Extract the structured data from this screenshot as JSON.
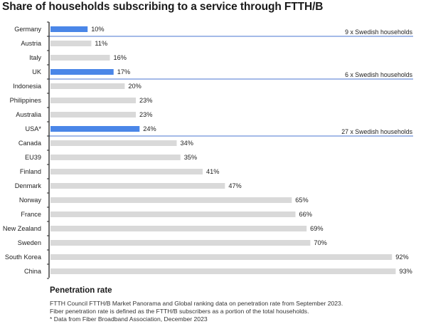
{
  "title": "Share of households subscribing to a service through FTTH/B",
  "footer": {
    "heading": "Penetration rate",
    "lines": [
      "FTTH Council FTTH/B Market Panorama and Global ranking data on penetration rate from September 2023.",
      "Fiber penetration rate is defined as the FTTH/B subscribers as a portion of the total households.",
      "* Data from Fiber Broadband Association, December 2023"
    ]
  },
  "colors": {
    "highlight": "#4a86e8",
    "default": "#d9d9d9",
    "rule": "#4a76d0",
    "axis": "#222222"
  },
  "chart_data": {
    "type": "bar",
    "orientation": "horizontal",
    "title": "Share of households subscribing to a service through FTTH/B",
    "xlabel": "Penetration rate",
    "xlim": [
      0,
      100
    ],
    "unit": "%",
    "categories": [
      "Germany",
      "Austria",
      "Italy",
      "UK",
      "Indonesia",
      "Philippines",
      "Australia",
      "USA*",
      "Canada",
      "EU39",
      "Finland",
      "Denmark",
      "Norway",
      "France",
      "New Zealand",
      "Sweden",
      "South Korea",
      "China"
    ],
    "values": [
      10,
      11,
      16,
      17,
      20,
      23,
      23,
      24,
      34,
      35,
      41,
      47,
      65,
      66,
      69,
      70,
      92,
      93
    ],
    "value_labels": [
      "10%",
      "11%",
      "16%",
      "17%",
      "20%",
      "23%",
      "23%",
      "24%",
      "34%",
      "35%",
      "41%",
      "47%",
      "65%",
      "66%",
      "69%",
      "70%",
      "92%",
      "93%"
    ],
    "highlighted": [
      "Germany",
      "UK",
      "USA*"
    ],
    "annotations": [
      {
        "after": "Germany",
        "text": "9 x Swedish households"
      },
      {
        "after": "UK",
        "text": "6 x Swedish households"
      },
      {
        "after": "USA*",
        "text": "27 x Swedish households"
      }
    ]
  }
}
